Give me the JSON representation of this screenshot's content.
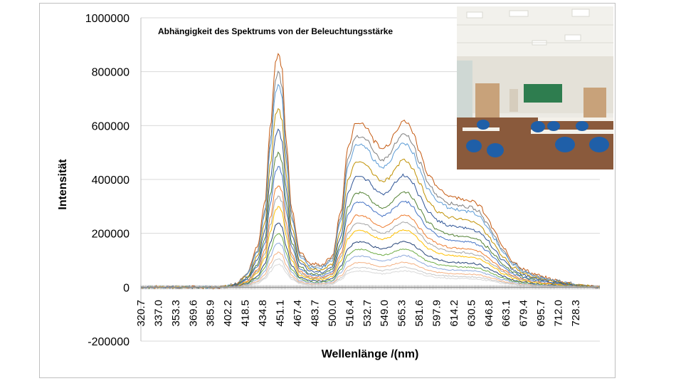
{
  "chart_data": {
    "type": "line",
    "title": "Abhängigkeit des Spektrums von der Beleuchtungsstärke",
    "xlabel": "Wellenlänge /(nm)",
    "ylabel": "Intensität",
    "ylim": [
      -200000,
      1000000
    ],
    "yticks": [
      "1000000",
      "800000",
      "600000",
      "400000",
      "200000",
      "0",
      "-200000"
    ],
    "xlim": [
      320.7,
      751.0
    ],
    "xticks": [
      "320.7",
      "337.0",
      "353.3",
      "369.6",
      "385.9",
      "402.2",
      "418.5",
      "434.8",
      "451.1",
      "467.4",
      "483.7",
      "500.0",
      "516.4",
      "532.7",
      "549.0",
      "565.3",
      "581.6",
      "597.9",
      "614.2",
      "630.5",
      "646.8",
      "663.1",
      "679.4",
      "695.7",
      "712.0",
      "728.3"
    ],
    "grid": true,
    "legend": "none",
    "inset_image": "classroom-photo",
    "spectrum_shape": {
      "x": [
        320.7,
        390,
        400,
        410,
        420,
        430,
        437,
        442,
        447,
        450,
        453,
        457,
        462,
        470,
        480,
        490,
        500,
        508,
        515,
        522,
        528,
        533,
        540,
        547,
        553,
        560,
        566,
        571,
        576,
        582,
        590,
        600,
        610,
        620,
        630,
        638,
        645,
        652,
        660,
        670,
        680,
        690,
        700,
        710,
        720,
        730,
        740,
        751
      ],
      "relative_intensity": [
        0,
        0,
        0.003,
        0.015,
        0.06,
        0.17,
        0.36,
        0.68,
        0.96,
        1.0,
        0.93,
        0.62,
        0.33,
        0.15,
        0.1,
        0.095,
        0.13,
        0.32,
        0.6,
        0.7,
        0.7,
        0.68,
        0.62,
        0.59,
        0.61,
        0.67,
        0.71,
        0.7,
        0.66,
        0.58,
        0.48,
        0.42,
        0.39,
        0.38,
        0.37,
        0.35,
        0.3,
        0.24,
        0.17,
        0.11,
        0.075,
        0.055,
        0.04,
        0.03,
        0.02,
        0.01,
        0.004,
        0.0
      ]
    },
    "series": [
      {
        "peak": 870000,
        "color": "#c55a11"
      },
      {
        "peak": 800000,
        "color": "#7f7f7f"
      },
      {
        "peak": 755000,
        "color": "#5b9bd5"
      },
      {
        "peak": 665000,
        "color": "#bf9000"
      },
      {
        "peak": 585000,
        "color": "#2f5597"
      },
      {
        "peak": 500000,
        "color": "#548235"
      },
      {
        "peak": 450000,
        "color": "#4472c4"
      },
      {
        "peak": 380000,
        "color": "#ed7d31"
      },
      {
        "peak": 340000,
        "color": "#a5a5a5"
      },
      {
        "peak": 300000,
        "color": "#ffc000"
      },
      {
        "peak": 240000,
        "color": "#264478"
      },
      {
        "peak": 200000,
        "color": "#70ad47"
      },
      {
        "peak": 165000,
        "color": "#8faadc"
      },
      {
        "peak": 130000,
        "color": "#f4b183"
      },
      {
        "peak": 105000,
        "color": "#c9c9c9"
      },
      {
        "peak": 85000,
        "color": "#d9d9d9"
      }
    ]
  }
}
